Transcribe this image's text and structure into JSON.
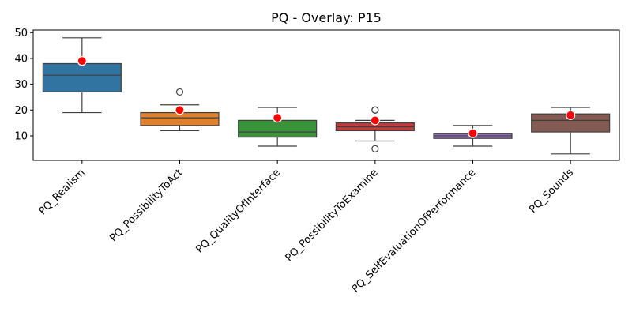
{
  "chart_data": {
    "type": "box",
    "title": "PQ - Overlay: P15",
    "xlabel": "",
    "ylabel": "",
    "ylim": [
      0.5,
      51
    ],
    "yticks": [
      10,
      20,
      30,
      40,
      50
    ],
    "grid": false,
    "legend": "none",
    "categories": [
      "PQ_Realism",
      "PQ_PossibilityToAct",
      "PQ_QualityOfInterface",
      "PQ_PossibilityToExamine",
      "PQ_SelfEvaluationOfPerformance",
      "PQ_Sounds"
    ],
    "boxes": [
      {
        "whisker_low": 19,
        "q1": 27,
        "median": 33.5,
        "q3": 38,
        "whisker_high": 48,
        "outliers": [],
        "overlay": 39,
        "color": "#3274a1"
      },
      {
        "whisker_low": 12,
        "q1": 14,
        "median": 17,
        "q3": 19,
        "whisker_high": 22,
        "outliers": [
          27
        ],
        "overlay": 20,
        "color": "#e1812c"
      },
      {
        "whisker_low": 6,
        "q1": 9.5,
        "median": 11.5,
        "q3": 16,
        "whisker_high": 21,
        "outliers": [],
        "overlay": 17,
        "color": "#3a923a"
      },
      {
        "whisker_low": 8,
        "q1": 12,
        "median": 13.5,
        "q3": 15,
        "whisker_high": 16,
        "outliers": [
          20,
          20,
          5
        ],
        "overlay": 16,
        "color": "#c03d3e"
      },
      {
        "whisker_low": 6,
        "q1": 9,
        "median": 10,
        "q3": 11,
        "whisker_high": 14,
        "outliers": [],
        "overlay": 11,
        "color": "#9372b2"
      },
      {
        "whisker_low": 3,
        "q1": 11.5,
        "median": 16,
        "q3": 18.5,
        "whisker_high": 21,
        "outliers": [],
        "overlay": 18,
        "color": "#845b53"
      }
    ],
    "overlay_color": "#ff0000"
  }
}
